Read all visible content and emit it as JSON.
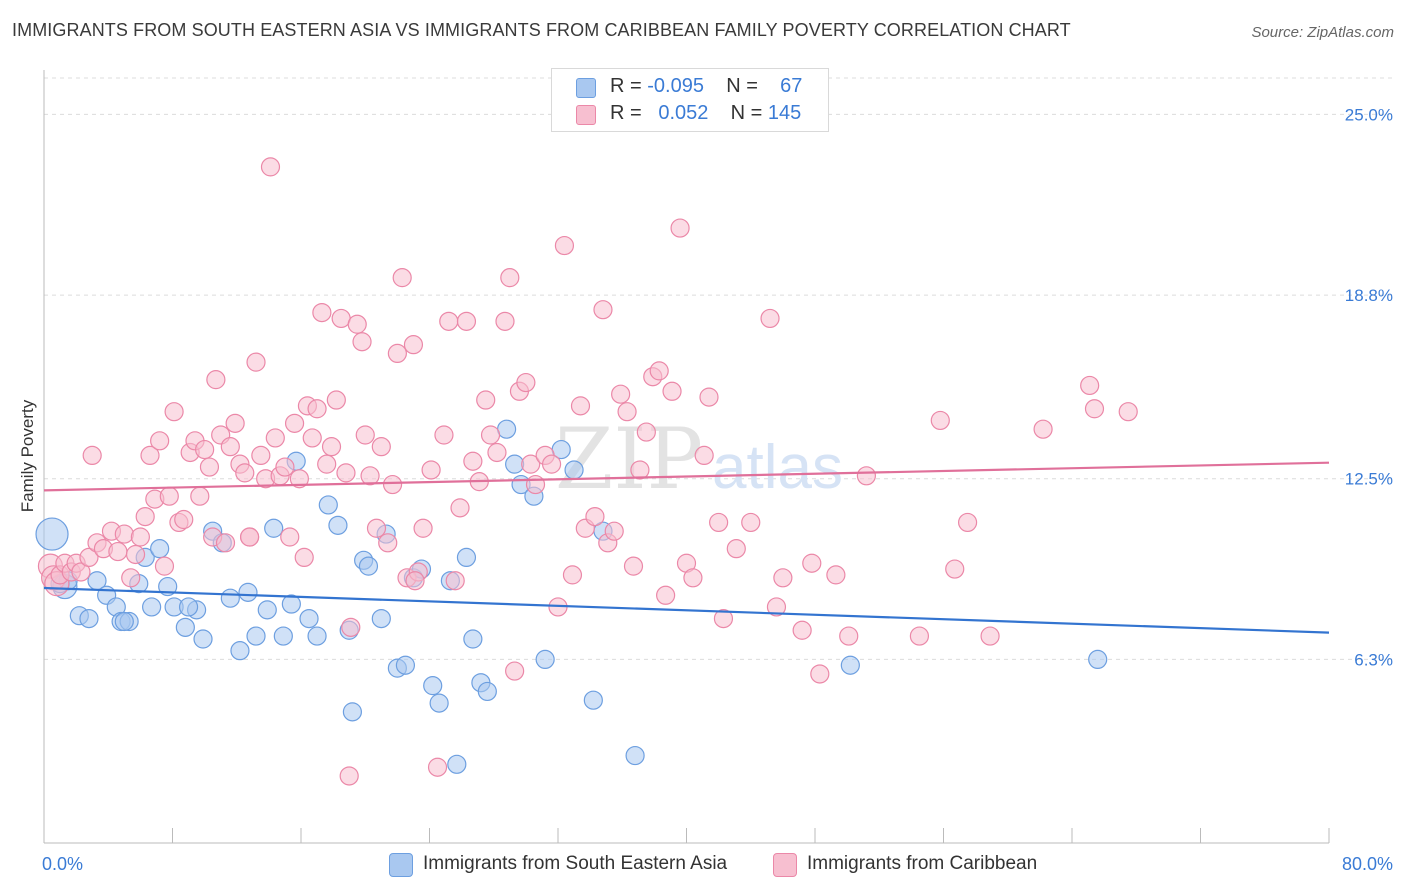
{
  "title": "IMMIGRANTS FROM SOUTH EASTERN ASIA VS IMMIGRANTS FROM CARIBBEAN FAMILY POVERTY CORRELATION CHART",
  "source": "Source: ZipAtlas.com",
  "watermark": {
    "zip": "ZIP",
    "atlas": "atlas"
  },
  "legend_top": {
    "rows": [
      {
        "r_label": "R = ",
        "r_value": "-0.095",
        "n_label": "N = ",
        "n_value": "67",
        "color": "#a9c8f0",
        "border": "#6d9fe0"
      },
      {
        "r_label": "R = ",
        "r_value": "0.052",
        "n_label": "N = ",
        "n_value": "145",
        "color": "#f7bfd0",
        "border": "#eb88a8"
      }
    ]
  },
  "chart_data": {
    "type": "scatter",
    "title": "IMMIGRANTS FROM SOUTH EASTERN ASIA VS IMMIGRANTS FROM CARIBBEAN FAMILY POVERTY CORRELATION CHART",
    "xlabel": "",
    "ylabel": "Family Poverty",
    "xlim": [
      0,
      80
    ],
    "ylim": [
      0,
      26.25
    ],
    "x_tick_labels": [
      {
        "value": 0,
        "label": "0.0%"
      },
      {
        "value": 80,
        "label": "80.0%"
      }
    ],
    "y_tick_labels": [
      {
        "value": 6.3,
        "label": "6.3%"
      },
      {
        "value": 12.5,
        "label": "12.5%"
      },
      {
        "value": 18.8,
        "label": "18.8%"
      },
      {
        "value": 25.0,
        "label": "25.0%"
      }
    ],
    "grid": true,
    "legend_position": "bottom",
    "series": [
      {
        "name": "Immigrants from South Eastern Asia",
        "color": "#a9c8f0",
        "edge": "#6d9fe0",
        "trend": {
          "x": [
            0,
            80
          ],
          "y": [
            8.75,
            7.22
          ]
        },
        "trend_color": "#3374d0",
        "points": [
          [
            0.5,
            10.6
          ],
          [
            1.3,
            8.8
          ],
          [
            1.5,
            9.0
          ],
          [
            2.2,
            7.8
          ],
          [
            2.8,
            7.7
          ],
          [
            3.3,
            9.0
          ],
          [
            3.9,
            8.5
          ],
          [
            4.5,
            8.1
          ],
          [
            4.8,
            7.6
          ],
          [
            5.3,
            7.6
          ],
          [
            5.9,
            8.9
          ],
          [
            6.3,
            9.8
          ],
          [
            6.7,
            8.1
          ],
          [
            7.2,
            10.1
          ],
          [
            7.7,
            8.8
          ],
          [
            8.1,
            8.1
          ],
          [
            8.8,
            7.4
          ],
          [
            9.5,
            8.0
          ],
          [
            9.9,
            7.0
          ],
          [
            10.5,
            10.7
          ],
          [
            11.1,
            10.3
          ],
          [
            11.6,
            8.4
          ],
          [
            12.2,
            6.6
          ],
          [
            12.7,
            8.6
          ],
          [
            13.2,
            7.1
          ],
          [
            13.9,
            8.0
          ],
          [
            14.3,
            10.8
          ],
          [
            14.9,
            7.1
          ],
          [
            15.4,
            8.2
          ],
          [
            15.7,
            13.1
          ],
          [
            16.5,
            7.7
          ],
          [
            17.0,
            7.1
          ],
          [
            17.7,
            11.6
          ],
          [
            18.3,
            10.9
          ],
          [
            19.0,
            7.3
          ],
          [
            19.2,
            4.5
          ],
          [
            19.9,
            9.7
          ],
          [
            20.2,
            9.5
          ],
          [
            21.0,
            7.7
          ],
          [
            21.3,
            10.6
          ],
          [
            22.0,
            6.0
          ],
          [
            22.5,
            6.1
          ],
          [
            23.0,
            9.1
          ],
          [
            23.5,
            9.4
          ],
          [
            24.2,
            5.4
          ],
          [
            24.6,
            4.8
          ],
          [
            25.3,
            9.0
          ],
          [
            25.7,
            2.7
          ],
          [
            26.3,
            9.8
          ],
          [
            26.7,
            7.0
          ],
          [
            27.2,
            5.5
          ],
          [
            27.6,
            5.2
          ],
          [
            28.8,
            14.2
          ],
          [
            29.3,
            13.0
          ],
          [
            29.7,
            12.3
          ],
          [
            30.5,
            11.9
          ],
          [
            31.2,
            6.3
          ],
          [
            32.2,
            13.5
          ],
          [
            33.0,
            12.8
          ],
          [
            34.2,
            4.9
          ],
          [
            34.8,
            10.7
          ],
          [
            36.8,
            3.0
          ],
          [
            50.2,
            6.1
          ],
          [
            65.6,
            6.3
          ],
          [
            1.0,
            8.9
          ],
          [
            5.0,
            7.6
          ],
          [
            9.0,
            8.1
          ]
        ]
      },
      {
        "name": "Immigrants from Caribbean",
        "color": "#f7bfd0",
        "edge": "#eb88a8",
        "trend": {
          "x": [
            0,
            80
          ],
          "y": [
            12.1,
            13.05
          ]
        },
        "trend_color": "#e0709a",
        "points": [
          [
            0.4,
            9.5
          ],
          [
            0.6,
            9.1
          ],
          [
            0.8,
            8.9
          ],
          [
            1.0,
            9.2
          ],
          [
            1.3,
            9.6
          ],
          [
            1.7,
            9.3
          ],
          [
            2.0,
            9.6
          ],
          [
            2.3,
            9.3
          ],
          [
            2.8,
            9.8
          ],
          [
            3.0,
            13.3
          ],
          [
            3.3,
            10.3
          ],
          [
            3.7,
            10.1
          ],
          [
            4.2,
            10.7
          ],
          [
            4.6,
            10.0
          ],
          [
            5.0,
            10.6
          ],
          [
            5.4,
            9.1
          ],
          [
            5.7,
            9.9
          ],
          [
            6.0,
            10.5
          ],
          [
            6.3,
            11.2
          ],
          [
            6.6,
            13.3
          ],
          [
            6.9,
            11.8
          ],
          [
            7.2,
            13.8
          ],
          [
            7.5,
            9.5
          ],
          [
            7.8,
            11.9
          ],
          [
            8.1,
            14.8
          ],
          [
            8.4,
            11.0
          ],
          [
            8.7,
            11.1
          ],
          [
            9.1,
            13.4
          ],
          [
            9.4,
            13.8
          ],
          [
            9.7,
            11.9
          ],
          [
            10.0,
            13.5
          ],
          [
            10.3,
            12.9
          ],
          [
            10.5,
            10.5
          ],
          [
            10.7,
            15.9
          ],
          [
            11.0,
            14.0
          ],
          [
            11.3,
            10.3
          ],
          [
            11.6,
            13.6
          ],
          [
            11.9,
            14.4
          ],
          [
            12.2,
            13.0
          ],
          [
            12.5,
            12.7
          ],
          [
            12.8,
            10.5
          ],
          [
            13.2,
            16.5
          ],
          [
            13.5,
            13.3
          ],
          [
            13.8,
            12.5
          ],
          [
            14.1,
            23.2
          ],
          [
            14.4,
            13.9
          ],
          [
            14.7,
            12.6
          ],
          [
            15.0,
            12.9
          ],
          [
            15.3,
            10.5
          ],
          [
            15.6,
            14.4
          ],
          [
            15.9,
            12.5
          ],
          [
            16.2,
            9.8
          ],
          [
            16.4,
            15.0
          ],
          [
            16.7,
            13.9
          ],
          [
            17.0,
            14.9
          ],
          [
            17.3,
            18.2
          ],
          [
            17.6,
            13.0
          ],
          [
            17.9,
            13.6
          ],
          [
            18.2,
            15.2
          ],
          [
            18.5,
            18.0
          ],
          [
            18.8,
            12.7
          ],
          [
            19.1,
            7.4
          ],
          [
            19.5,
            17.8
          ],
          [
            19.8,
            17.2
          ],
          [
            20.0,
            14.0
          ],
          [
            20.3,
            12.6
          ],
          [
            20.7,
            10.8
          ],
          [
            21.0,
            13.6
          ],
          [
            21.4,
            10.3
          ],
          [
            21.7,
            12.3
          ],
          [
            22.0,
            16.8
          ],
          [
            22.3,
            19.4
          ],
          [
            22.6,
            9.1
          ],
          [
            23.0,
            17.1
          ],
          [
            23.3,
            9.3
          ],
          [
            23.6,
            10.8
          ],
          [
            24.1,
            12.8
          ],
          [
            24.5,
            2.6
          ],
          [
            24.9,
            14.0
          ],
          [
            25.2,
            17.9
          ],
          [
            25.6,
            9.0
          ],
          [
            25.9,
            11.5
          ],
          [
            26.3,
            17.9
          ],
          [
            26.7,
            13.1
          ],
          [
            27.1,
            12.4
          ],
          [
            27.5,
            15.2
          ],
          [
            27.8,
            14.0
          ],
          [
            28.2,
            13.4
          ],
          [
            28.7,
            17.9
          ],
          [
            29.0,
            19.4
          ],
          [
            29.3,
            5.9
          ],
          [
            29.6,
            15.5
          ],
          [
            30.0,
            15.8
          ],
          [
            30.3,
            13.0
          ],
          [
            30.6,
            12.3
          ],
          [
            31.2,
            13.3
          ],
          [
            31.6,
            13.0
          ],
          [
            32.0,
            8.1
          ],
          [
            32.4,
            20.5
          ],
          [
            32.9,
            9.2
          ],
          [
            33.4,
            15.0
          ],
          [
            33.7,
            10.8
          ],
          [
            34.3,
            11.2
          ],
          [
            34.8,
            18.3
          ],
          [
            35.1,
            10.3
          ],
          [
            35.5,
            10.7
          ],
          [
            35.9,
            15.4
          ],
          [
            36.3,
            14.8
          ],
          [
            36.7,
            9.5
          ],
          [
            37.1,
            12.8
          ],
          [
            37.5,
            14.1
          ],
          [
            37.9,
            16.0
          ],
          [
            38.3,
            16.2
          ],
          [
            38.7,
            8.5
          ],
          [
            39.1,
            15.5
          ],
          [
            39.6,
            21.1
          ],
          [
            40.0,
            9.6
          ],
          [
            40.4,
            9.1
          ],
          [
            41.1,
            13.3
          ],
          [
            41.4,
            15.3
          ],
          [
            42.0,
            11.0
          ],
          [
            42.3,
            7.7
          ],
          [
            43.1,
            10.1
          ],
          [
            44.0,
            11.0
          ],
          [
            45.2,
            18.0
          ],
          [
            45.6,
            8.1
          ],
          [
            46.0,
            9.1
          ],
          [
            47.2,
            7.3
          ],
          [
            47.8,
            9.6
          ],
          [
            48.3,
            5.8
          ],
          [
            49.3,
            9.2
          ],
          [
            50.1,
            7.1
          ],
          [
            51.2,
            12.6
          ],
          [
            54.5,
            7.1
          ],
          [
            55.8,
            14.5
          ],
          [
            56.7,
            9.4
          ],
          [
            57.5,
            11.0
          ],
          [
            58.9,
            7.1
          ],
          [
            62.2,
            14.2
          ],
          [
            65.1,
            15.7
          ],
          [
            65.4,
            14.9
          ],
          [
            67.5,
            14.8
          ],
          [
            23.1,
            9.0
          ],
          [
            19.0,
            2.3
          ],
          [
            12.8,
            10.5
          ]
        ]
      }
    ]
  },
  "legend_bottom": {
    "items": [
      {
        "label": "Immigrants from South Eastern Asia",
        "color": "#a9c8f0",
        "border": "#6d9fe0"
      },
      {
        "label": "Immigrants from Caribbean",
        "color": "#f7bfd0",
        "border": "#eb88a8"
      }
    ]
  },
  "axis_label_color": "#3a7bd5",
  "ylabel_text": "Family Poverty"
}
